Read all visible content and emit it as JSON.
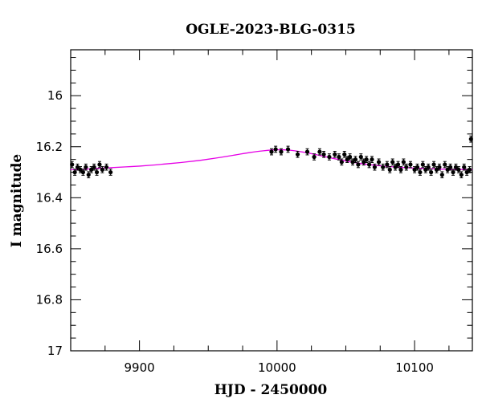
{
  "chart_data": {
    "type": "scatter",
    "title": "OGLE-2023-BLG-0315",
    "xlabel": "HJD - 2450000",
    "ylabel": "I magnitude",
    "xlim": [
      9850,
      10142
    ],
    "ylim": [
      17.0,
      15.82
    ],
    "y_inverted": true,
    "grid": false,
    "x_major_ticks": [
      9900,
      10000,
      10100
    ],
    "x_minor_ticks": [
      9875,
      9925,
      9950,
      9975,
      10025,
      10050,
      10075,
      10125
    ],
    "y_major_ticks": [
      16,
      16.2,
      16.4,
      16.6,
      16.8,
      17
    ],
    "y_minor_ticks": [
      15.85,
      15.9,
      15.95,
      16.05,
      16.1,
      16.15,
      16.25,
      16.3,
      16.35,
      16.45,
      16.5,
      16.55,
      16.65,
      16.7,
      16.75,
      16.85,
      16.9,
      16.95
    ],
    "model_color": "#e600e6",
    "point_color": "#000000",
    "model": {
      "x": [
        9850,
        9860,
        9870,
        9880,
        9890,
        9900,
        9910,
        9920,
        9930,
        9940,
        9950,
        9960,
        9970,
        9980,
        9990,
        10000,
        10010,
        10020,
        10030,
        10040,
        10050,
        10060,
        10070,
        10080,
        10090,
        10100,
        10110,
        10120,
        10130,
        10142
      ],
      "y": [
        16.29,
        16.288,
        16.285,
        16.282,
        16.279,
        16.276,
        16.272,
        16.267,
        16.262,
        16.256,
        16.249,
        16.241,
        16.232,
        16.223,
        16.216,
        16.212,
        16.214,
        16.222,
        16.233,
        16.245,
        16.256,
        16.265,
        16.272,
        16.277,
        16.281,
        16.284,
        16.286,
        16.288,
        16.289,
        16.29
      ]
    },
    "observations": {
      "x": [
        9851,
        9853,
        9855,
        9857,
        9859,
        9861,
        9863,
        9865,
        9867,
        9869,
        9871,
        9873,
        9876,
        9879,
        9996,
        9999,
        10003,
        10008,
        10015,
        10022,
        10027,
        10031,
        10034,
        10038,
        10042,
        10045,
        10047,
        10049,
        10051,
        10053,
        10055,
        10057,
        10059,
        10061,
        10063,
        10065,
        10067,
        10069,
        10071,
        10074,
        10077,
        10080,
        10082,
        10084,
        10086,
        10088,
        10090,
        10092,
        10094,
        10097,
        10100,
        10102,
        10104,
        10106,
        10108,
        10110,
        10112,
        10114,
        10116,
        10118,
        10120,
        10122,
        10124,
        10126,
        10128,
        10130,
        10132,
        10134,
        10136,
        10138,
        10140,
        10141
      ],
      "y": [
        16.27,
        16.3,
        16.28,
        16.29,
        16.3,
        16.28,
        16.31,
        16.29,
        16.28,
        16.3,
        16.27,
        16.29,
        16.28,
        16.3,
        16.22,
        16.21,
        16.22,
        16.21,
        16.23,
        16.22,
        16.24,
        16.22,
        16.23,
        16.24,
        16.23,
        16.24,
        16.26,
        16.23,
        16.25,
        16.24,
        16.26,
        16.25,
        16.27,
        16.24,
        16.26,
        16.25,
        16.27,
        16.25,
        16.28,
        16.26,
        16.28,
        16.27,
        16.29,
        16.26,
        16.28,
        16.27,
        16.29,
        16.26,
        16.28,
        16.27,
        16.29,
        16.28,
        16.3,
        16.27,
        16.29,
        16.28,
        16.3,
        16.27,
        16.29,
        16.28,
        16.31,
        16.27,
        16.29,
        16.28,
        16.3,
        16.28,
        16.29,
        16.31,
        16.28,
        16.3,
        16.29,
        16.17
      ],
      "err": 0.012
    }
  }
}
